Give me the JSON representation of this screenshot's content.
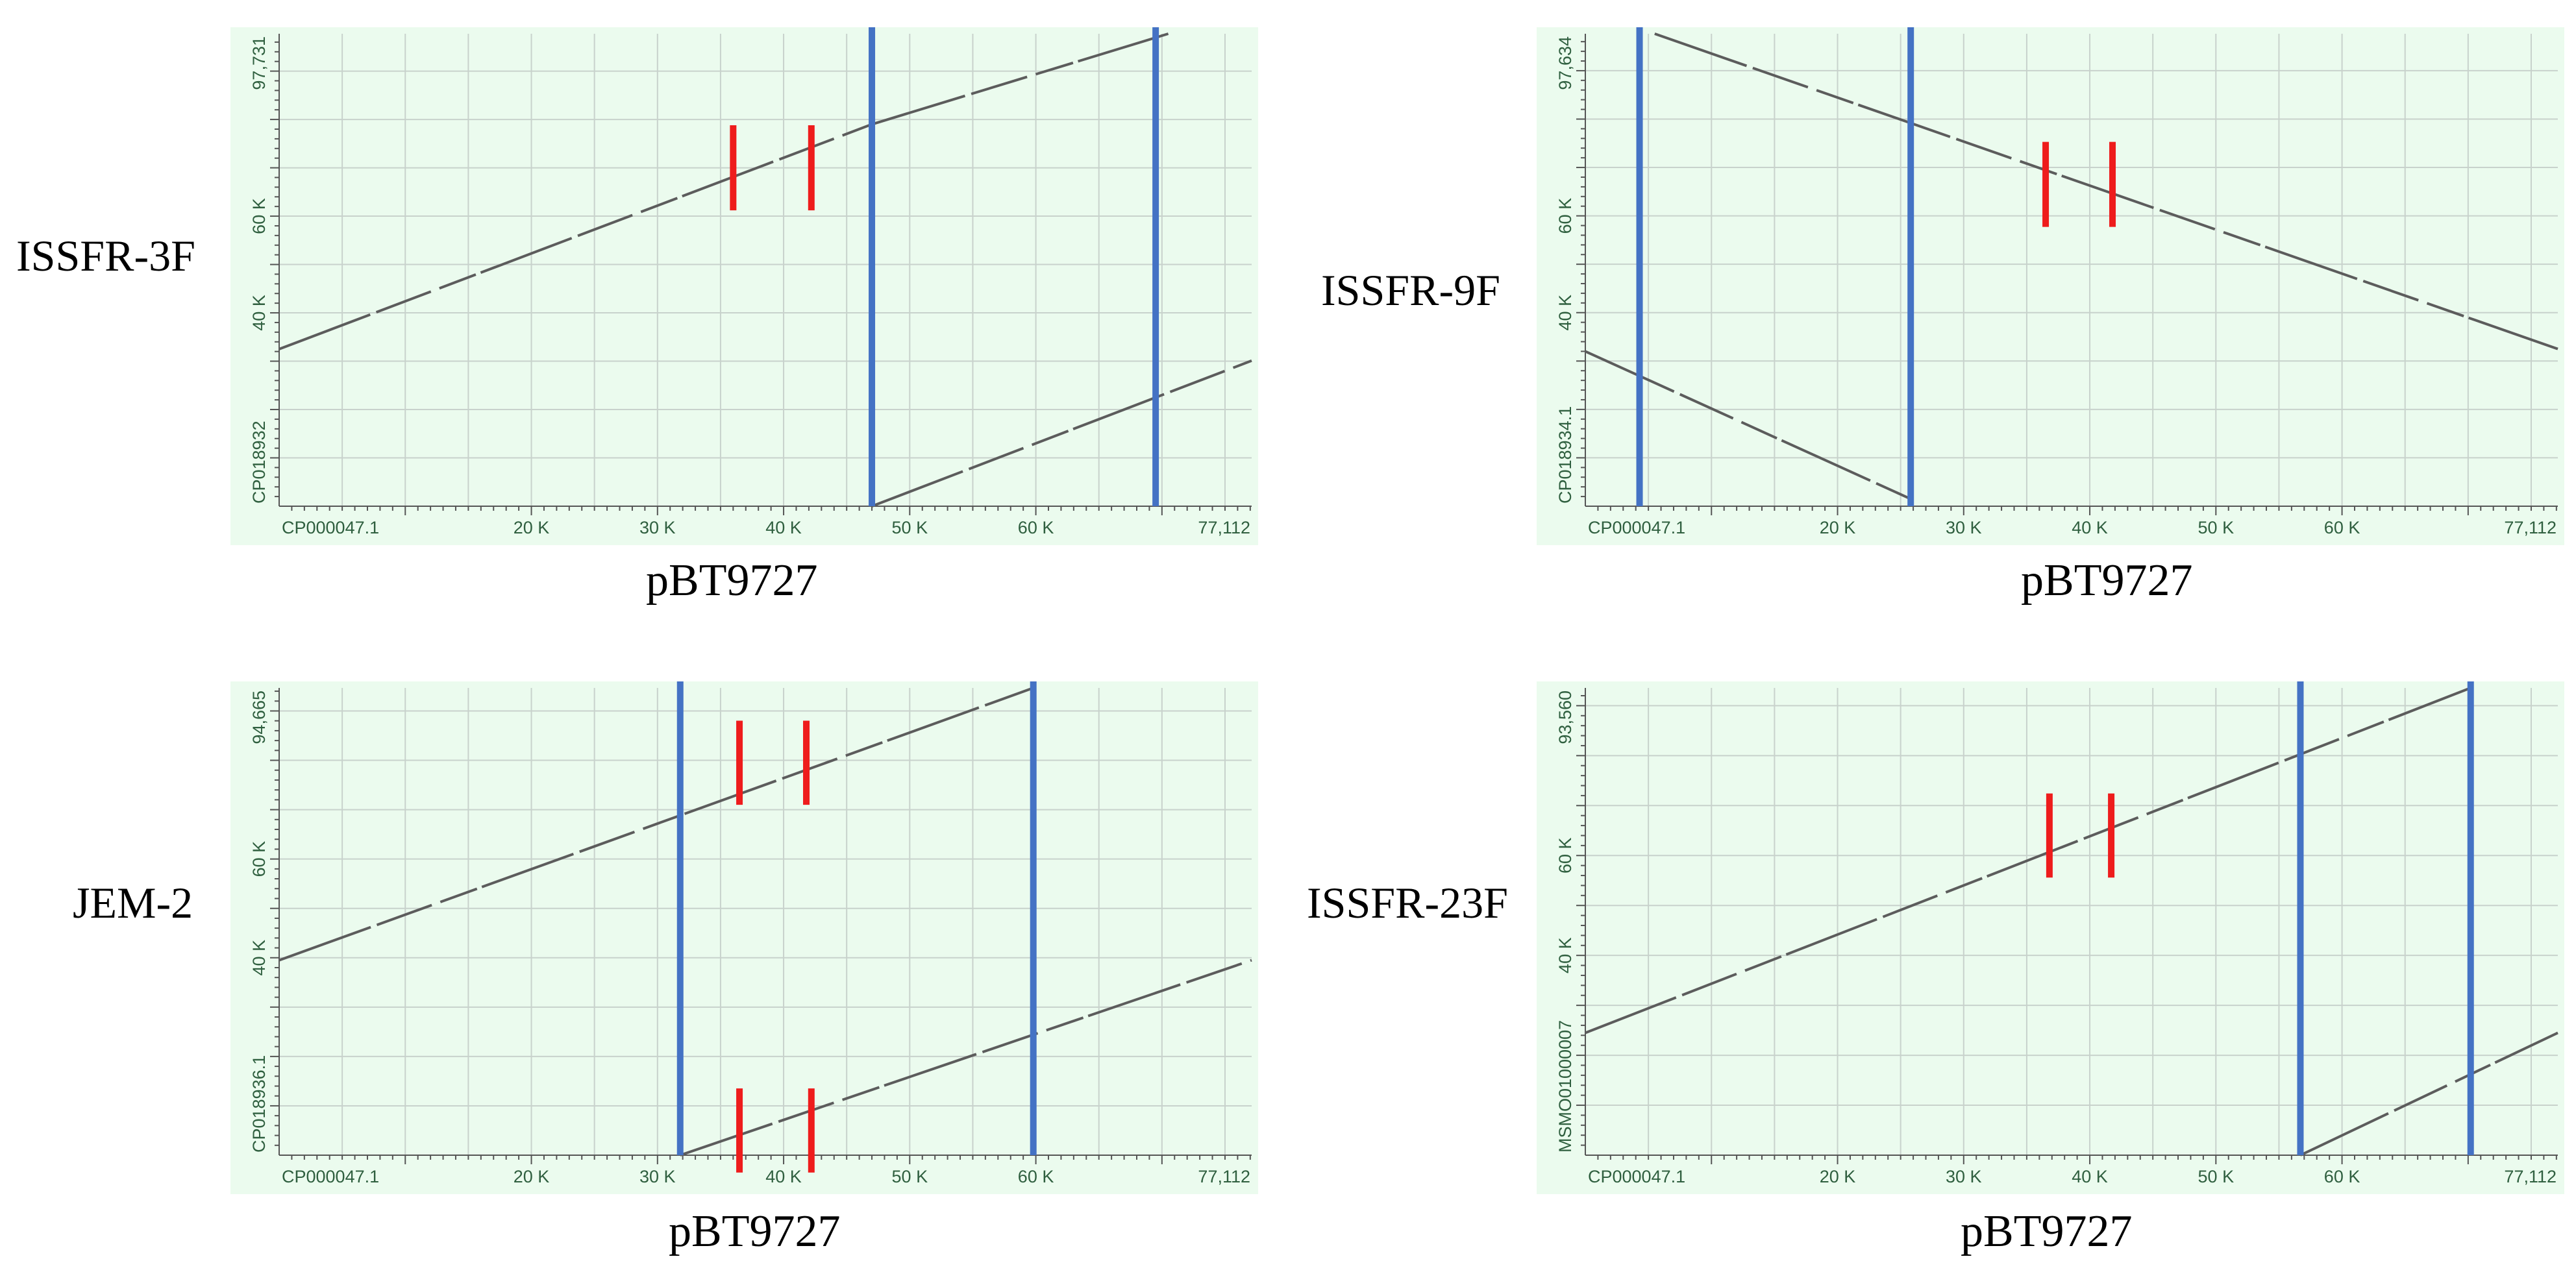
{
  "colors": {
    "plot_background": "#ebfbee",
    "grid": "#c8d2cc",
    "alignment": "#5c5c5c",
    "blue_marker": "#4472c4",
    "red_marker": "#ee1c1c",
    "axis_text": "#2f5f3f"
  },
  "chart_data": [
    {
      "type": "dot-plot",
      "panel_label": "ISSFR-3F",
      "xlabel": "pBT9727",
      "x_name": "CP000047.1",
      "x_end": 77112,
      "x_end_label": "77,112",
      "x_ticks": [
        {
          "value": 20000,
          "label": "20 K"
        },
        {
          "value": 30000,
          "label": "30 K"
        },
        {
          "value": 40000,
          "label": "40 K"
        },
        {
          "value": 50000,
          "label": "50 K"
        },
        {
          "value": 60000,
          "label": "60 K"
        }
      ],
      "y_name": "CP018932",
      "y_end": 97731,
      "y_end_label": "97,731",
      "y_ticks": [
        {
          "value": 40000,
          "label": "40 K"
        },
        {
          "value": 60000,
          "label": "60 K"
        }
      ],
      "alignments": [
        {
          "x1": 0,
          "y1": 32500,
          "x2": 47000,
          "y2": 79000
        },
        {
          "x1": 47000,
          "y1": 79000,
          "x2": 70500,
          "y2": 97731
        },
        {
          "x1": 47000,
          "y1": 0,
          "x2": 77112,
          "y2": 30100
        }
      ],
      "blue_lines_x": [
        47000,
        69500
      ],
      "red_bars": [
        {
          "x": 36000,
          "y_center": 70000
        },
        {
          "x": 42200,
          "y_center": 70000
        }
      ]
    },
    {
      "type": "dot-plot",
      "panel_label": "ISSFR-9F",
      "xlabel": "pBT9727",
      "x_name": "CP000047.1",
      "x_end": 77112,
      "x_end_label": "77,112",
      "x_ticks": [
        {
          "value": 20000,
          "label": "20 K"
        },
        {
          "value": 30000,
          "label": "30 K"
        },
        {
          "value": 40000,
          "label": "40 K"
        },
        {
          "value": 50000,
          "label": "50 K"
        },
        {
          "value": 60000,
          "label": "60 K"
        }
      ],
      "y_name": "CP018934.1",
      "y_end": 97634,
      "y_end_label": "97,634",
      "y_ticks": [
        {
          "value": 40000,
          "label": "40 K"
        },
        {
          "value": 60000,
          "label": "60 K"
        }
      ],
      "alignments": [
        {
          "x1": 5500,
          "y1": 97634,
          "x2": 77112,
          "y2": 32500
        },
        {
          "x1": 0,
          "y1": 32000,
          "x2": 25800,
          "y2": 1500
        }
      ],
      "blue_lines_x": [
        4300,
        25800
      ],
      "red_bars": [
        {
          "x": 36500,
          "y_center": 66500
        },
        {
          "x": 41800,
          "y_center": 66500
        }
      ]
    },
    {
      "type": "dot-plot",
      "panel_label": "JEM-2",
      "xlabel": "pBT9727",
      "x_name": "CP000047.1",
      "x_end": 77112,
      "x_end_label": "77,112",
      "x_ticks": [
        {
          "value": 20000,
          "label": "20 K"
        },
        {
          "value": 30000,
          "label": "30 K"
        },
        {
          "value": 40000,
          "label": "40 K"
        },
        {
          "value": 50000,
          "label": "50 K"
        },
        {
          "value": 60000,
          "label": "60 K"
        }
      ],
      "y_name": "CP018936.1",
      "y_end": 94665,
      "y_end_label": "94,665",
      "y_ticks": [
        {
          "value": 40000,
          "label": "40 K"
        },
        {
          "value": 60000,
          "label": "60 K"
        }
      ],
      "alignments": [
        {
          "x1": 0,
          "y1": 39500,
          "x2": 59800,
          "y2": 94665
        },
        {
          "x1": 31800,
          "y1": 0,
          "x2": 77112,
          "y2": 39500
        }
      ],
      "blue_lines_x": [
        31800,
        59800
      ],
      "red_bars": [
        {
          "x": 36500,
          "y_center": 79500
        },
        {
          "x": 41800,
          "y_center": 79500
        },
        {
          "x": 36500,
          "y_center": 5000
        },
        {
          "x": 42200,
          "y_center": 5000
        }
      ]
    },
    {
      "type": "dot-plot",
      "panel_label": "ISSFR-23F",
      "xlabel": "pBT9727",
      "x_name": "CP000047.1",
      "x_end": 77112,
      "x_end_label": "77,112",
      "x_ticks": [
        {
          "value": 20000,
          "label": "20 K"
        },
        {
          "value": 30000,
          "label": "30 K"
        },
        {
          "value": 40000,
          "label": "40 K"
        },
        {
          "value": 50000,
          "label": "50 K"
        },
        {
          "value": 60000,
          "label": "60 K"
        }
      ],
      "y_name": "MSMO01000007",
      "y_end": 93560,
      "y_end_label": "93,560",
      "y_ticks": [
        {
          "value": 40000,
          "label": "40 K"
        },
        {
          "value": 60000,
          "label": "60 K"
        }
      ],
      "alignments": [
        {
          "x1": 0,
          "y1": 24500,
          "x2": 70200,
          "y2": 93560
        },
        {
          "x1": 56700,
          "y1": 0,
          "x2": 77112,
          "y2": 24500
        }
      ],
      "blue_lines_x": [
        56700,
        70200
      ],
      "red_bars": [
        {
          "x": 36800,
          "y_center": 64000
        },
        {
          "x": 41700,
          "y_center": 64000
        }
      ]
    }
  ]
}
